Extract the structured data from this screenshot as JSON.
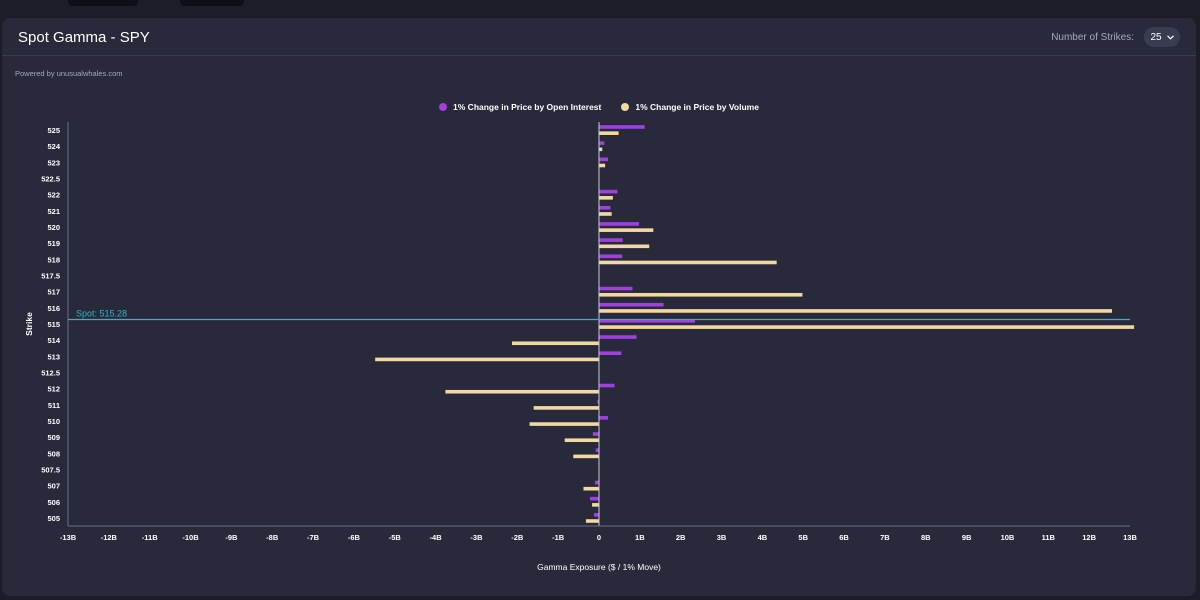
{
  "header": {
    "title": "Spot Gamma - SPY",
    "strikes_label": "Number of Strikes:",
    "strikes_value": "25"
  },
  "powered_by": "Powered by unusualwhales.com",
  "colors": {
    "oi": "#a040e0",
    "volume": "#f3d8a2",
    "spot": "#26b8c8",
    "background": "#282a3c"
  },
  "chart_data": {
    "type": "bar",
    "orientation": "horizontal",
    "categories": [
      "525",
      "524",
      "523",
      "522.5",
      "522",
      "521",
      "520",
      "519",
      "518",
      "517.5",
      "517",
      "516",
      "515",
      "514",
      "513",
      "512.5",
      "512",
      "511",
      "510",
      "509",
      "508",
      "507.5",
      "507",
      "506",
      "505"
    ],
    "series": [
      {
        "name": "1% Change in Price by Open Interest",
        "values": [
          1.12,
          0.13,
          0.22,
          0,
          0.45,
          0.28,
          0.98,
          0.58,
          0.57,
          0,
          0.82,
          1.58,
          2.35,
          0.92,
          0.55,
          0,
          0.38,
          -0.04,
          0.22,
          -0.15,
          -0.08,
          0,
          -0.1,
          -0.22,
          -0.12
        ]
      },
      {
        "name": "1% Change in Price by Volume",
        "values": [
          0.48,
          0.08,
          0.15,
          0,
          0.34,
          0.31,
          1.33,
          1.23,
          4.35,
          0,
          4.98,
          12.56,
          13.1,
          -2.13,
          -5.48,
          0,
          -3.76,
          -1.6,
          -1.7,
          -0.84,
          -0.63,
          0,
          -0.38,
          -0.17,
          -0.32
        ]
      }
    ],
    "spot": 515.28,
    "spot_label": "Spot: 515.28",
    "x_ticks": [
      "-13B",
      "-12B",
      "-11B",
      "-10B",
      "-9B",
      "-8B",
      "-7B",
      "-6B",
      "-5B",
      "-4B",
      "-3B",
      "-2B",
      "-1B",
      "0",
      "1B",
      "2B",
      "3B",
      "4B",
      "5B",
      "6B",
      "7B",
      "8B",
      "9B",
      "10B",
      "11B",
      "12B",
      "13B"
    ],
    "xlim": [
      -13,
      13
    ],
    "xlabel": "Gamma Exposure ($ / 1% Move)",
    "ylabel": "Strike",
    "legend_position": "top-center",
    "grid": false
  }
}
